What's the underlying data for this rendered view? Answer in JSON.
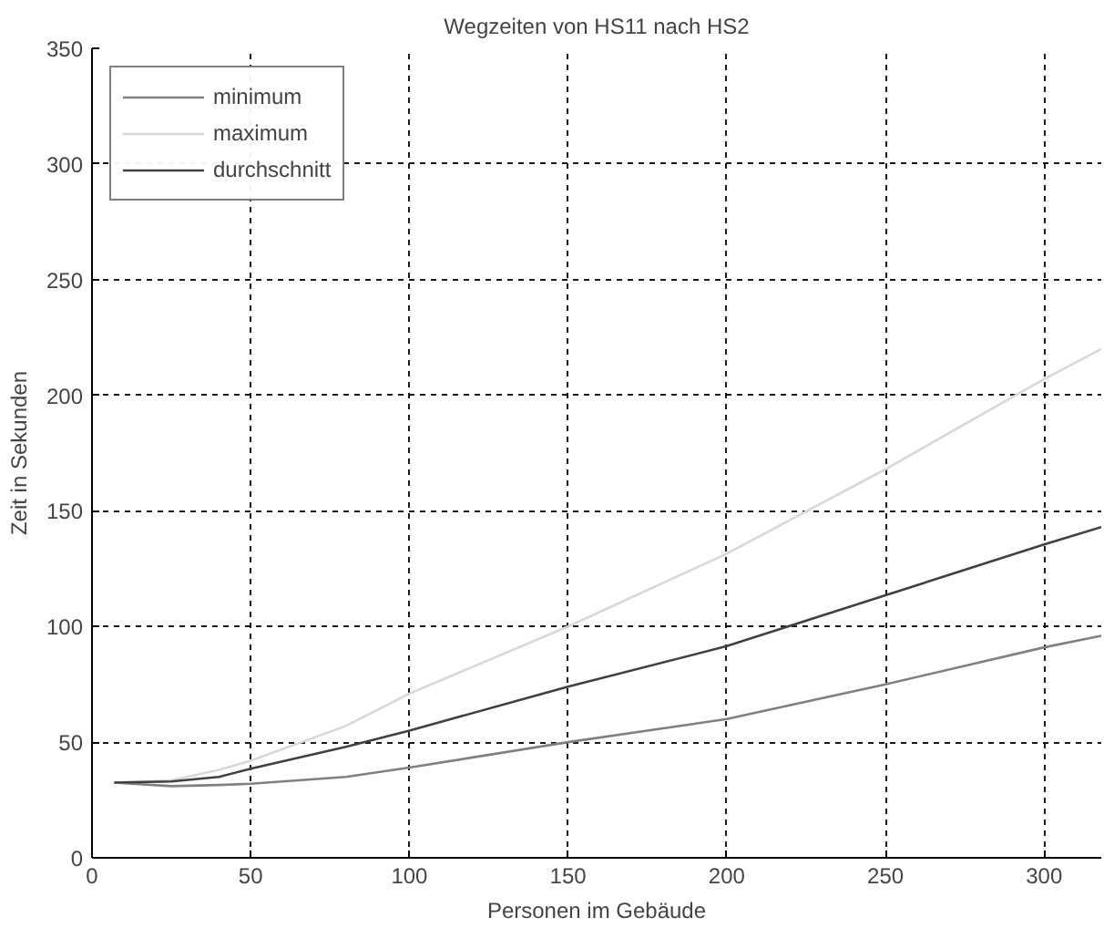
{
  "chart_data": {
    "type": "line",
    "title": "Wegzeiten von HS11 nach HS2",
    "xlabel": "Personen im Gebäude",
    "ylabel": "Zeit in Sekunden",
    "x": [
      7,
      25,
      40,
      50,
      80,
      100,
      150,
      200,
      250,
      300,
      318
    ],
    "series": [
      {
        "name": "minimum",
        "color": "#808080",
        "values": [
          32.5,
          31,
          31.5,
          32,
          35,
          39,
          50,
          60,
          75,
          91,
          96
        ]
      },
      {
        "name": "maximum",
        "color": "#d8d8d8",
        "values": [
          32.5,
          33.5,
          38,
          42,
          57,
          71,
          100,
          131.5,
          168,
          207,
          220
        ]
      },
      {
        "name": "durchschnitt",
        "color": "#404040",
        "values": [
          32.5,
          33,
          35,
          38.5,
          48,
          55,
          74,
          91.5,
          113.5,
          135.5,
          143
        ]
      }
    ],
    "xlim": [
      0,
      318
    ],
    "ylim": [
      0,
      350
    ],
    "xticks": [
      0,
      50,
      100,
      150,
      200,
      250,
      300
    ],
    "yticks": [
      0,
      50,
      100,
      150,
      200,
      250,
      300,
      350
    ],
    "grid": true,
    "legend": "top left",
    "line_style": "solid",
    "marker": "none"
  }
}
